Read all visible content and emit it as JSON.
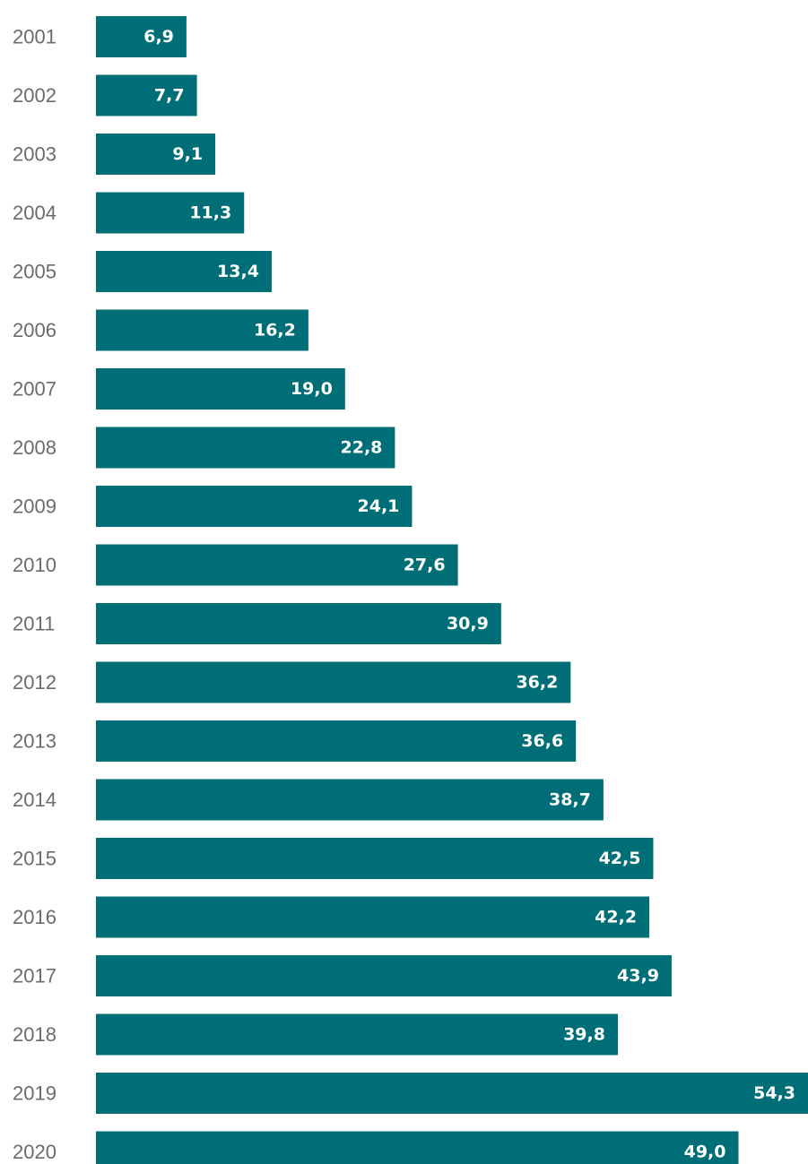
{
  "chart_data": {
    "type": "bar",
    "orientation": "horizontal",
    "categories": [
      "2001",
      "2002",
      "2003",
      "2004",
      "2005",
      "2006",
      "2007",
      "2008",
      "2009",
      "2010",
      "2011",
      "2012",
      "2013",
      "2014",
      "2015",
      "2016",
      "2017",
      "2018",
      "2019",
      "2020"
    ],
    "values": [
      6.9,
      7.7,
      9.1,
      11.3,
      13.4,
      16.2,
      19.0,
      22.8,
      24.1,
      27.6,
      30.9,
      36.2,
      36.6,
      38.7,
      42.5,
      42.2,
      43.9,
      39.8,
      54.3,
      49.0
    ],
    "value_labels": [
      "6,9",
      "7,7",
      "9,1",
      "11,3",
      "13,4",
      "16,2",
      "19,0",
      "22,8",
      "24,1",
      "27,6",
      "30,9",
      "36,2",
      "36,6",
      "38,7",
      "42,5",
      "42,2",
      "43,9",
      "39,8",
      "54,3",
      "49,0"
    ],
    "bar_color": "#006e76",
    "value_label_color": "#ffffff",
    "category_label_color": "#6b6b6b",
    "xlim": [
      0,
      54.3
    ],
    "grid": false,
    "legend": "none"
  }
}
